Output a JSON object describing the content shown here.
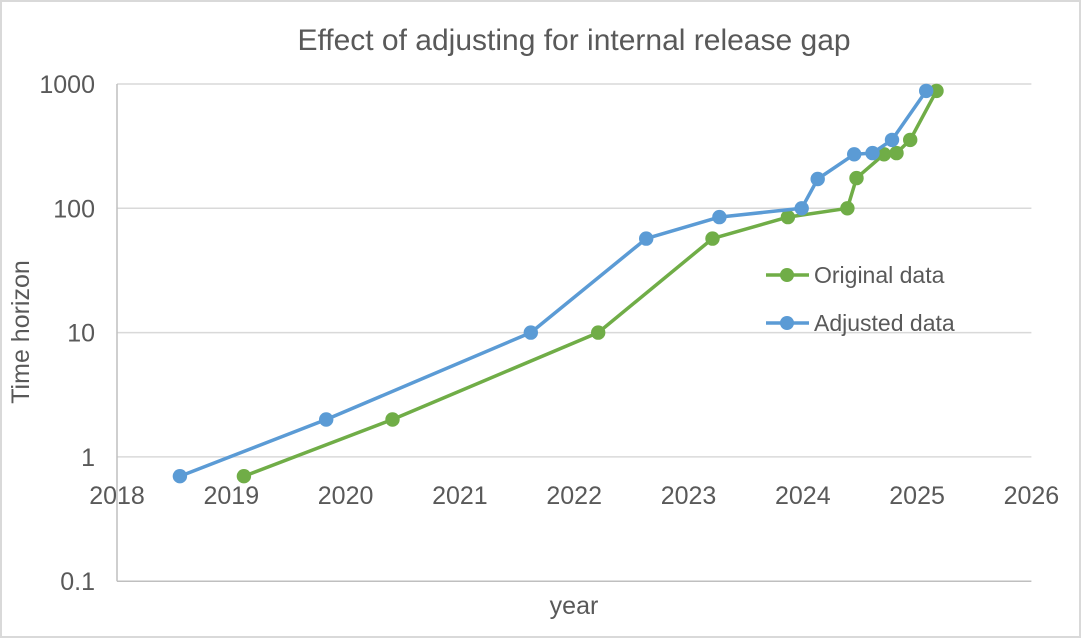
{
  "chart": {
    "title": "Effect of adjusting for internal release gap",
    "x_axis_title": "year",
    "y_axis_title": "Time horizon"
  },
  "chart_data": {
    "type": "line",
    "title": "Effect of adjusting for internal release gap",
    "xlabel": "year",
    "ylabel": "Time horizon",
    "y_scale": "log",
    "xlim": [
      2018,
      2026
    ],
    "ylim": [
      0.1,
      1000
    ],
    "x_ticks": [
      2018,
      2019,
      2020,
      2021,
      2022,
      2023,
      2024,
      2025,
      2026
    ],
    "y_ticks": [
      1000,
      100,
      10,
      1,
      0.1
    ],
    "grid": "horizontal",
    "legend_position": "inside-right",
    "series": [
      {
        "name": "Original data",
        "color": "#70AD47",
        "points": [
          [
            2019.11,
            0.7
          ],
          [
            2020.41,
            2
          ],
          [
            2022.21,
            10
          ],
          [
            2023.21,
            57
          ],
          [
            2023.87,
            85
          ],
          [
            2024.39,
            100
          ],
          [
            2024.47,
            175
          ],
          [
            2024.71,
            272
          ],
          [
            2024.82,
            278
          ],
          [
            2024.94,
            355
          ],
          [
            2025.17,
            880
          ]
        ]
      },
      {
        "name": "Adjusted data",
        "color": "#5B9BD5",
        "points": [
          [
            2018.55,
            0.7
          ],
          [
            2019.83,
            2
          ],
          [
            2021.62,
            10
          ],
          [
            2022.63,
            57
          ],
          [
            2023.27,
            85
          ],
          [
            2023.99,
            100
          ],
          [
            2024.13,
            172
          ],
          [
            2024.45,
            272
          ],
          [
            2024.61,
            278
          ],
          [
            2024.78,
            355
          ],
          [
            2025.08,
            880
          ]
        ]
      }
    ]
  },
  "colors": {
    "text": "#595959",
    "gridline": "#D9D9D9",
    "axis_line": "#BFBFBF",
    "series_original": "#70AD47",
    "series_adjusted": "#5B9BD5",
    "background": "#FFFFFF",
    "chart_border": "#D9D9D9"
  }
}
